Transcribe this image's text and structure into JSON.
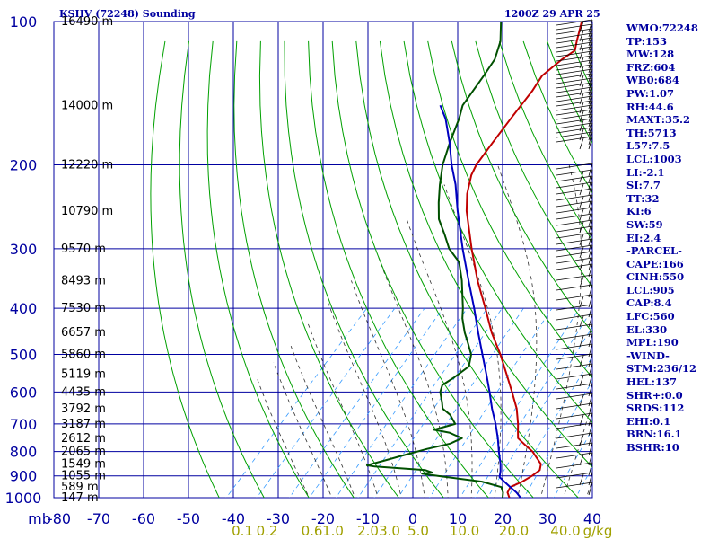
{
  "chart_data": {
    "type": "line",
    "title": "KSHV (72248) Sounding",
    "time": "1200Z 29 APR 25",
    "x_unit_label": "mb",
    "xlim": [
      -80,
      40
    ],
    "ylim": [
      1000,
      100
    ],
    "y_scale": "log",
    "y_ticks": [
      100,
      200,
      300,
      400,
      500,
      600,
      700,
      800,
      900,
      1000
    ],
    "x_ticks": [
      -80,
      -70,
      -60,
      -50,
      -40,
      -30,
      -20,
      -10,
      0,
      10,
      20,
      30,
      40
    ],
    "mixing_ratio_unit": "g/kg",
    "mixing_ratio_labels": [
      {
        "label": "0.1",
        "t": -38
      },
      {
        "label": "0.2",
        "t": -32.5
      },
      {
        "label": "0.6",
        "t": -22.5
      },
      {
        "label": "1.0",
        "t": -17.8
      },
      {
        "label": "2.0",
        "t": -10
      },
      {
        "label": "3.0",
        "t": -5.2
      },
      {
        "label": "5.0",
        "t": 1.2
      },
      {
        "label": "10.0",
        "t": 11.5
      },
      {
        "label": "20.0",
        "t": 22.5
      },
      {
        "label": "40.0",
        "t": 34
      }
    ],
    "height_labels": [
      {
        "label": "16490 m",
        "p": 100
      },
      {
        "label": "14000 m",
        "p": 150
      },
      {
        "label": "12220 m",
        "p": 200
      },
      {
        "label": "10790 m",
        "p": 250
      },
      {
        "label": "9570 m",
        "p": 300
      },
      {
        "label": "8493 m",
        "p": 350
      },
      {
        "label": "7530 m",
        "p": 400
      },
      {
        "label": "6657 m",
        "p": 450
      },
      {
        "label": "5860 m",
        "p": 500
      },
      {
        "label": "5119 m",
        "p": 550
      },
      {
        "label": "4435 m",
        "p": 600
      },
      {
        "label": "3792 m",
        "p": 650
      },
      {
        "label": "3187 m",
        "p": 700
      },
      {
        "label": "2612 m",
        "p": 750
      },
      {
        "label": "2065 m",
        "p": 800
      },
      {
        "label": "1549 m",
        "p": 850
      },
      {
        "label": "1055 m",
        "p": 900
      },
      {
        "label": "589 m",
        "p": 950
      },
      {
        "label": "147 m",
        "p": 1000
      }
    ],
    "series": [
      {
        "key": "temperature",
        "color": "#c00000",
        "values": [
          [
            1000,
            21.5
          ],
          [
            975,
            20.0
          ],
          [
            950,
            19.5
          ],
          [
            925,
            21.0
          ],
          [
            900,
            22.0
          ],
          [
            875,
            22.5
          ],
          [
            850,
            21.5
          ],
          [
            800,
            17.0
          ],
          [
            775,
            14.0
          ],
          [
            750,
            11.0
          ],
          [
            725,
            9.5
          ],
          [
            700,
            8.0
          ],
          [
            650,
            4.5
          ],
          [
            600,
            0.0
          ],
          [
            550,
            -5.0
          ],
          [
            500,
            -10.5
          ],
          [
            450,
            -17.0
          ],
          [
            400,
            -23.5
          ],
          [
            350,
            -31.0
          ],
          [
            300,
            -39.0
          ],
          [
            250,
            -48.0
          ],
          [
            230,
            -51.5
          ],
          [
            210,
            -54.5
          ],
          [
            200,
            -55.5
          ],
          [
            180,
            -56.5
          ],
          [
            160,
            -57.5
          ],
          [
            150,
            -58.0
          ],
          [
            140,
            -58.5
          ],
          [
            130,
            -59.5
          ],
          [
            120,
            -58.5
          ],
          [
            115,
            -57.5
          ],
          [
            110,
            -59.0
          ],
          [
            100,
            -62.0
          ]
        ]
      },
      {
        "key": "dewpoint",
        "color": "#005000",
        "values": [
          [
            1000,
            20.0
          ],
          [
            975,
            19.0
          ],
          [
            950,
            17.5
          ],
          [
            925,
            12.0
          ],
          [
            900,
            1.0
          ],
          [
            890,
            -3.0
          ],
          [
            885,
            -1.0
          ],
          [
            875,
            -3.0
          ],
          [
            860,
            -15.0
          ],
          [
            855,
            -17.0
          ],
          [
            835,
            -14.0
          ],
          [
            815,
            -11.0
          ],
          [
            790,
            -7.0
          ],
          [
            770,
            -3.0
          ],
          [
            750,
            -1.5
          ],
          [
            730,
            -5.5
          ],
          [
            720,
            -9.5
          ],
          [
            700,
            -6.0
          ],
          [
            670,
            -9.0
          ],
          [
            650,
            -12.0
          ],
          [
            630,
            -13.5
          ],
          [
            600,
            -16.0
          ],
          [
            580,
            -17.0
          ],
          [
            560,
            -16.0
          ],
          [
            530,
            -15.0
          ],
          [
            500,
            -17.0
          ],
          [
            470,
            -20.5
          ],
          [
            450,
            -23.0
          ],
          [
            420,
            -26.5
          ],
          [
            400,
            -28.5
          ],
          [
            350,
            -34.5
          ],
          [
            320,
            -39.0
          ],
          [
            300,
            -44.0
          ],
          [
            280,
            -48.0
          ],
          [
            260,
            -52.5
          ],
          [
            240,
            -56.0
          ],
          [
            220,
            -59.5
          ],
          [
            200,
            -63.0
          ],
          [
            180,
            -66.0
          ],
          [
            160,
            -69.0
          ],
          [
            150,
            -71.0
          ],
          [
            130,
            -72.5
          ],
          [
            120,
            -73.5
          ],
          [
            110,
            -76.0
          ],
          [
            100,
            -80.0
          ]
        ]
      },
      {
        "key": "parcel",
        "color": "#0000c0",
        "values": [
          [
            1000,
            24.0
          ],
          [
            975,
            22.0
          ],
          [
            950,
            19.5
          ],
          [
            925,
            17.0
          ],
          [
            905,
            15.0
          ],
          [
            880,
            14.0
          ],
          [
            850,
            12.5
          ],
          [
            800,
            9.5
          ],
          [
            750,
            6.5
          ],
          [
            700,
            3.0
          ],
          [
            650,
            -1.0
          ],
          [
            600,
            -5.0
          ],
          [
            550,
            -9.5
          ],
          [
            500,
            -14.5
          ],
          [
            450,
            -20.0
          ],
          [
            400,
            -26.0
          ],
          [
            350,
            -33.0
          ],
          [
            300,
            -41.0
          ],
          [
            250,
            -50.0
          ],
          [
            220,
            -56.0
          ],
          [
            200,
            -61.0
          ],
          [
            180,
            -66.0
          ],
          [
            160,
            -72.0
          ],
          [
            150,
            -76.0
          ]
        ]
      }
    ]
  },
  "header": {
    "title": "KSHV (72248) Sounding",
    "time": "1200Z 29 APR 25"
  },
  "stats": [
    "WMO:72248",
    "TP:153",
    "MW:128",
    "FRZ:604",
    "WB0:684",
    "PW:1.07",
    "RH:44.6",
    "MAXT:35.2",
    "TH:5713",
    "L57:7.5",
    "LCL:1003",
    "LI:-2.1",
    "SI:7.7",
    "TT:32",
    "KI:6",
    "SW:59",
    "EI:2.4",
    "-PARCEL-",
    "CAPE:166",
    "CINH:550",
    "LCL:905",
    "CAP:8.4",
    "LFC:560",
    "EL:330",
    "MPL:190",
    "-WIND-",
    "STM:236/12",
    "HEL:137",
    "SHR+:0.0",
    "SRDS:112",
    "EHI:0.1",
    "BRN:16.1",
    "BSHR:10"
  ],
  "colors": {
    "grid": "#0000a0",
    "dry_adiabat": "#00a000",
    "moist_adiabat": "#303030",
    "mixing_ratio": "#3399ff",
    "axis_text": "#0000a0",
    "mixing_text": "#a0a000",
    "height_text": "#000000"
  }
}
